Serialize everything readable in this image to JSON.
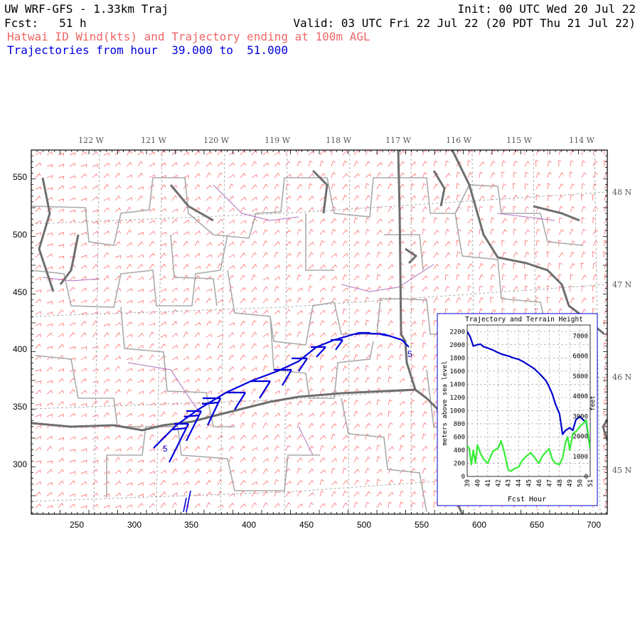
{
  "header": {
    "model": "UW WRF-GFS - 1.33km Traj",
    "init": "Init: 00 UTC Wed 20 Jul 22",
    "fcst": "Fcst:   51 h",
    "valid": "Valid: 03 UTC Fri 22 Jul 22 (20 PDT Thu 21 Jul 22)",
    "field": "Hatwai ID Wind(kts) and Trajectory ending at 100m AGL",
    "traj_range": "Trajectories from hour  39.000 to  51.000"
  },
  "map": {
    "x_ticks": [
      "250",
      "300",
      "350",
      "400",
      "450",
      "500",
      "550",
      "600",
      "650",
      "700"
    ],
    "y_ticks": [
      "300",
      "350",
      "400",
      "450",
      "500",
      "550"
    ],
    "lon_labels": [
      "122 W",
      "121 W",
      "120 W",
      "119 W",
      "118 W",
      "117 W",
      "116 W",
      "115 W",
      "114 W"
    ],
    "lat_labels": [
      "48 N",
      "47 N",
      "46 N",
      "45 N"
    ],
    "traj_start_label": "5",
    "traj_end_label": "5",
    "colors": {
      "wind": "#ff5a5a",
      "trajectory": "#0000dd",
      "borders": "#6e6e6e",
      "counties": "#aaaaaa",
      "water": "#b070c0"
    }
  },
  "inset": {
    "title": "Trajectory and Terrain Height",
    "ylabel_left": "meters above sea level",
    "ylabel_right": "feet",
    "xlabel": "Fcst Hour",
    "left_ticks": [
      "0",
      "200",
      "400",
      "600",
      "800",
      "1000",
      "1200",
      "1400",
      "1600",
      "1800",
      "2000",
      "2200"
    ],
    "right_ticks": [
      "0",
      "1000",
      "2000",
      "3000",
      "4000",
      "5000",
      "6000",
      "7000"
    ],
    "x_ticks": [
      "39",
      "40",
      "41",
      "42",
      "43",
      "44",
      "45",
      "46",
      "47",
      "48",
      "49",
      "50",
      "51"
    ]
  },
  "chart_data": {
    "type": "line",
    "title": "Trajectory and Terrain Height",
    "xlabel": "Fcst Hour",
    "ylabel": "meters above sea level",
    "xlim": [
      39,
      51
    ],
    "ylim": [
      0,
      2300
    ],
    "series": [
      {
        "color": "#0000cc",
        "x": [
          39,
          39.3,
          39.6,
          40,
          40.3,
          40.6,
          41,
          41.5,
          42,
          42.5,
          43,
          43.5,
          44,
          44.5,
          45,
          45.5,
          46,
          46.3,
          46.7,
          47,
          47.3,
          47.6,
          48,
          48.3,
          48.6,
          49,
          49.3,
          49.6,
          50,
          50.3,
          50.6,
          51
        ],
        "y": [
          2200,
          2120,
          1980,
          2000,
          2010,
          1970,
          1950,
          1920,
          1880,
          1850,
          1830,
          1800,
          1780,
          1740,
          1690,
          1640,
          1570,
          1520,
          1450,
          1360,
          1250,
          1100,
          950,
          640,
          700,
          740,
          700,
          860,
          910,
          860,
          830,
          420
        ]
      },
      {
        "color": "#33ee33",
        "x": [
          39,
          39.2,
          39.4,
          39.6,
          39.8,
          40,
          40.3,
          40.6,
          41,
          41.5,
          42,
          42.3,
          42.6,
          43,
          43.3,
          43.6,
          44,
          44.4,
          44.8,
          45.2,
          45.6,
          46,
          46.3,
          46.6,
          47,
          47.3,
          47.6,
          48,
          48.3,
          48.6,
          48.8,
          49,
          49.3,
          49.6,
          50,
          50.3,
          50.6,
          51
        ],
        "y": [
          470,
          420,
          180,
          400,
          200,
          480,
          350,
          260,
          200,
          380,
          430,
          540,
          380,
          100,
          80,
          120,
          140,
          250,
          310,
          360,
          280,
          200,
          300,
          360,
          420,
          260,
          200,
          180,
          280,
          520,
          600,
          400,
          650,
          680,
          760,
          800,
          860,
          420
        ]
      }
    ]
  }
}
